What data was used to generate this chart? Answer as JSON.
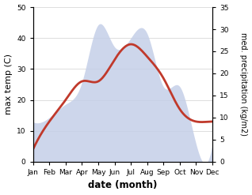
{
  "months": [
    "Jan",
    "Feb",
    "Mar",
    "Apr",
    "May",
    "Jun",
    "Jul",
    "Aug",
    "Sep",
    "Oct",
    "Nov",
    "Dec"
  ],
  "temperature": [
    4,
    13,
    20,
    26,
    26,
    33,
    38,
    34,
    27,
    17,
    13,
    13
  ],
  "precipitation": [
    9,
    10,
    13,
    18,
    31,
    26,
    28,
    29,
    17,
    17,
    4,
    4
  ],
  "temp_color": "#c0392b",
  "precip_color": "#c5cfe8",
  "left_ylim": [
    0,
    50
  ],
  "right_ylim": [
    0,
    35
  ],
  "left_yticks": [
    0,
    10,
    20,
    30,
    40,
    50
  ],
  "right_yticks": [
    0,
    5,
    10,
    15,
    20,
    25,
    30,
    35
  ],
  "left_ylabel": "max temp (C)",
  "right_ylabel": "med. precipitation (kg/m2)",
  "xlabel": "date (month)",
  "bg_color": "#ffffff",
  "grid_color": "#d0d0d0",
  "temp_linewidth": 2.0,
  "font_size_ticks": 6.5,
  "font_size_ylabel": 8,
  "font_size_xlabel": 8.5
}
